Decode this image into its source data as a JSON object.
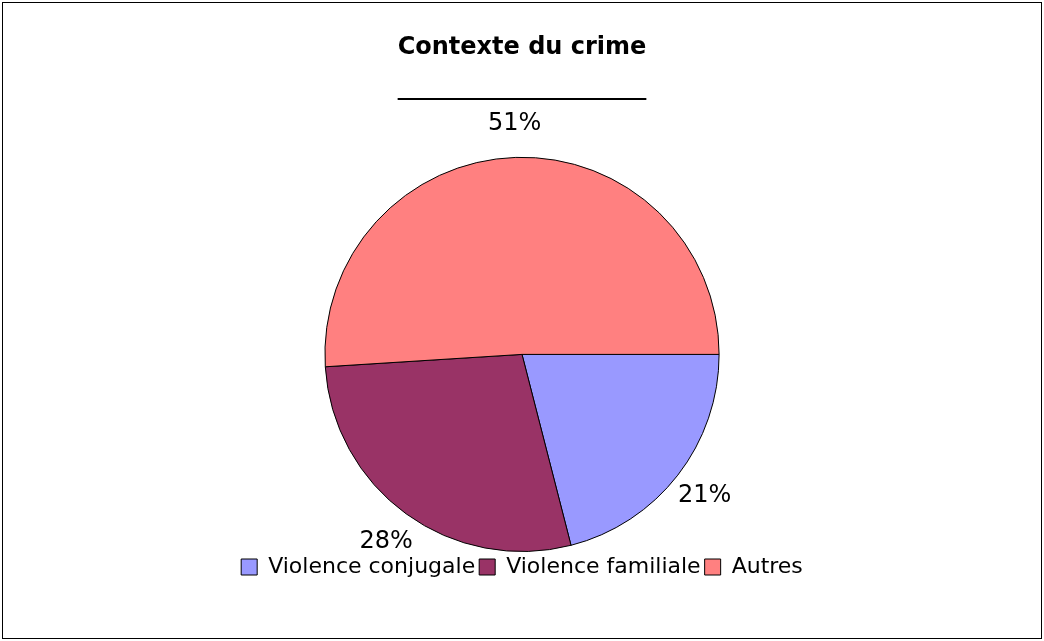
{
  "chart_data": {
    "type": "pie",
    "title": "Contexte du crime",
    "categories": [
      "Violence conjugale",
      "Violence familiale",
      "Autres"
    ],
    "values": [
      21,
      28,
      51
    ],
    "colors": [
      "#9999ff",
      "#993366",
      "#ff8080"
    ],
    "value_labels": [
      "21%",
      "28%",
      "51%"
    ],
    "legend": "bottom"
  }
}
